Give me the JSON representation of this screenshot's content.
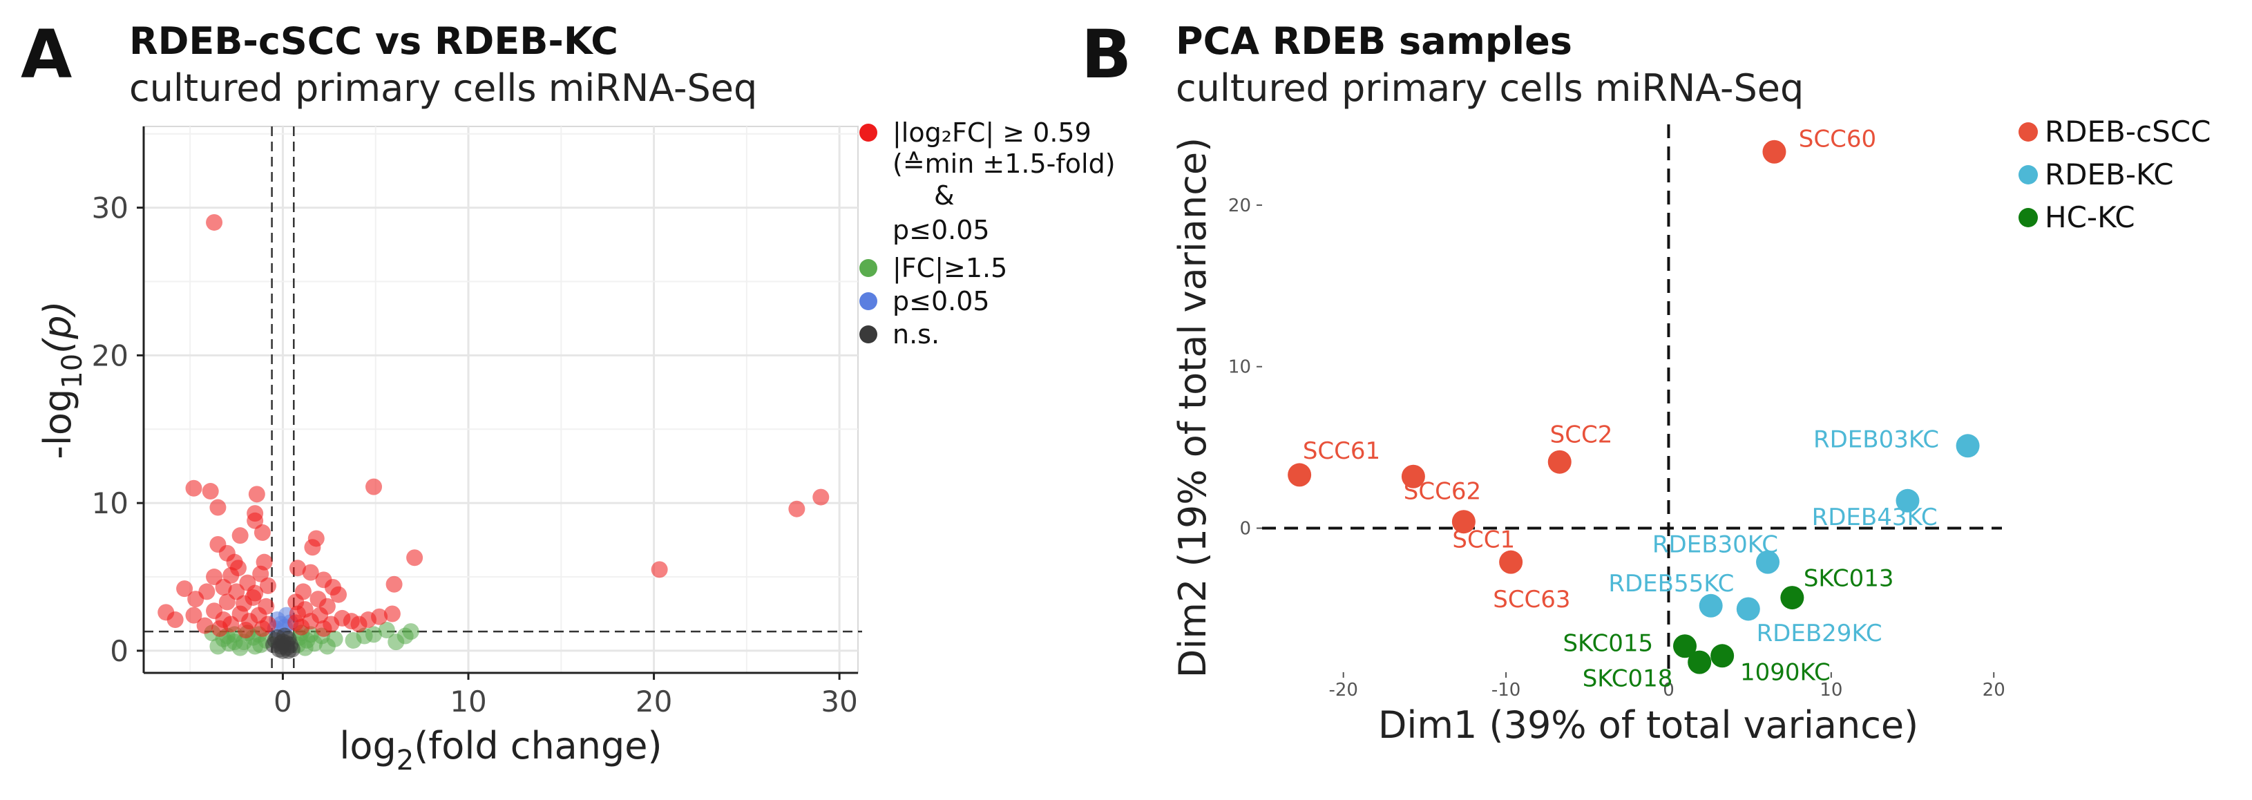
{
  "figure": {
    "panel_a_letter": "A",
    "panel_b_letter": "B"
  },
  "chart_data": [
    {
      "type": "scatter",
      "subtype": "volcano",
      "title": "RDEB-cSCC vs RDEB-KC",
      "subtitle": "cultured primary cells miRNA-Seq",
      "xlabel": {
        "main": "log",
        "sub": "2",
        "tail": "(fold change)"
      },
      "ylabel": {
        "main": "-log",
        "sub": "10",
        "tail": "(p)"
      },
      "xlim": [
        -7.5,
        31
      ],
      "ylim": [
        -1.5,
        35.5
      ],
      "xticks": [
        0,
        10,
        20,
        30
      ],
      "yticks": [
        0,
        10,
        20,
        30
      ],
      "thresholds": {
        "fc_left": -0.59,
        "fc_right": 0.59,
        "p_line": 1.3
      },
      "legend": {
        "position": "right",
        "items": [
          {
            "key": "sig",
            "color": "#ee1c1c",
            "lines": [
              "|log₂FC| ≥ 0.59",
              "(≙min ±1.5-fold)",
              "&",
              "p≤0.05"
            ]
          },
          {
            "key": "fc",
            "color": "#5aac4e",
            "lines": [
              "|FC|≥1.5"
            ]
          },
          {
            "key": "p",
            "color": "#5b7fe0",
            "lines": [
              "p≤0.05"
            ]
          },
          {
            "key": "ns",
            "color": "#3a3a3a",
            "lines": [
              "n.s."
            ]
          }
        ]
      },
      "series": [
        {
          "name": "significant",
          "color": "#ee1c1c",
          "points": [
            [
              -3.7,
              29.0
            ],
            [
              -4.8,
              11.0
            ],
            [
              -3.9,
              10.8
            ],
            [
              -3.5,
              9.7
            ],
            [
              -1.4,
              10.6
            ],
            [
              -1.5,
              9.3
            ],
            [
              -1.5,
              8.8
            ],
            [
              -1.1,
              8.0
            ],
            [
              -2.3,
              7.8
            ],
            [
              -3.5,
              7.2
            ],
            [
              -3.0,
              6.6
            ],
            [
              -2.6,
              6.0
            ],
            [
              -1.0,
              6.0
            ],
            [
              -3.7,
              5.0
            ],
            [
              -2.4,
              5.6
            ],
            [
              -1.9,
              4.6
            ],
            [
              -1.2,
              5.2
            ],
            [
              -0.8,
              4.4
            ],
            [
              -3.2,
              4.3
            ],
            [
              -5.3,
              4.2
            ],
            [
              -4.1,
              4.0
            ],
            [
              -2.5,
              4.0
            ],
            [
              -1.6,
              3.6
            ],
            [
              -3.0,
              3.3
            ],
            [
              -4.7,
              3.5
            ],
            [
              -2.1,
              3.2
            ],
            [
              -0.9,
              3.0
            ],
            [
              -3.7,
              2.7
            ],
            [
              -2.3,
              2.5
            ],
            [
              -1.3,
              2.4
            ],
            [
              -6.3,
              2.6
            ],
            [
              -5.8,
              2.1
            ],
            [
              -4.8,
              2.4
            ],
            [
              -3.2,
              2.1
            ],
            [
              -1.8,
              2.0
            ],
            [
              -0.8,
              1.8
            ],
            [
              -2.8,
              1.8
            ],
            [
              -4.2,
              1.7
            ],
            [
              -1.1,
              1.5
            ],
            [
              -2.0,
              1.4
            ],
            [
              -3.4,
              1.5
            ],
            [
              -1.5,
              3.9
            ],
            [
              -2.8,
              5.1
            ],
            [
              1.8,
              7.6
            ],
            [
              1.6,
              7.0
            ],
            [
              0.8,
              5.6
            ],
            [
              1.5,
              5.3
            ],
            [
              2.2,
              4.8
            ],
            [
              2.7,
              4.3
            ],
            [
              1.1,
              4.0
            ],
            [
              3.0,
              3.8
            ],
            [
              1.9,
              3.5
            ],
            [
              0.7,
              3.3
            ],
            [
              2.4,
              3.0
            ],
            [
              1.2,
              2.8
            ],
            [
              0.8,
              2.5
            ],
            [
              2.0,
              2.4
            ],
            [
              3.2,
              2.2
            ],
            [
              1.5,
              2.0
            ],
            [
              0.7,
              1.9
            ],
            [
              2.6,
              1.8
            ],
            [
              1.0,
              1.6
            ],
            [
              2.2,
              1.5
            ],
            [
              3.7,
              2.0
            ],
            [
              4.1,
              1.8
            ],
            [
              4.6,
              2.1
            ],
            [
              5.2,
              2.3
            ],
            [
              5.9,
              2.5
            ],
            [
              6.0,
              4.5
            ],
            [
              7.1,
              6.3
            ],
            [
              4.9,
              11.1
            ],
            [
              20.3,
              5.5
            ],
            [
              27.7,
              9.6
            ],
            [
              29.0,
              10.4
            ]
          ]
        },
        {
          "name": "fc_only",
          "color": "#5aac4e",
          "points": [
            [
              -3.8,
              1.2
            ],
            [
              -3.2,
              0.8
            ],
            [
              -2.6,
              1.1
            ],
            [
              -2.1,
              0.6
            ],
            [
              -1.6,
              0.9
            ],
            [
              -1.2,
              0.4
            ],
            [
              -2.9,
              0.5
            ],
            [
              -3.5,
              0.3
            ],
            [
              -2.3,
              0.2
            ],
            [
              -1.9,
              1.2
            ],
            [
              -1.3,
              1.1
            ],
            [
              -0.9,
              0.7
            ],
            [
              -2.6,
              0.6
            ],
            [
              -1.5,
              0.3
            ],
            [
              -3.0,
              1.0
            ],
            [
              0.8,
              0.4
            ],
            [
              1.0,
              1.2
            ],
            [
              1.3,
              0.7
            ],
            [
              1.7,
              0.5
            ],
            [
              2.1,
              1.0
            ],
            [
              2.4,
              0.3
            ],
            [
              1.2,
              0.2
            ],
            [
              2.8,
              0.8
            ],
            [
              1.5,
              1.1
            ],
            [
              0.9,
              0.9
            ],
            [
              3.8,
              0.7
            ],
            [
              4.4,
              1.0
            ],
            [
              4.9,
              1.1
            ],
            [
              5.6,
              1.4
            ],
            [
              6.1,
              0.6
            ],
            [
              6.6,
              1.0
            ],
            [
              6.9,
              1.3
            ]
          ]
        },
        {
          "name": "p_only",
          "color": "#5b7fe0",
          "points": [
            [
              -0.3,
              2.1
            ],
            [
              0.2,
              2.4
            ],
            [
              -0.1,
              1.8
            ],
            [
              0.4,
              1.9
            ],
            [
              0.1,
              1.6
            ],
            [
              -0.4,
              1.5
            ]
          ]
        },
        {
          "name": "ns",
          "color": "#3a3a3a",
          "points": [
            [
              -0.5,
              0.4
            ],
            [
              -0.3,
              0.9
            ],
            [
              -0.1,
              0.3
            ],
            [
              0.0,
              0.6
            ],
            [
              0.2,
              0.2
            ],
            [
              0.3,
              0.8
            ],
            [
              0.4,
              0.4
            ],
            [
              0.1,
              1.0
            ],
            [
              -0.2,
              0.1
            ],
            [
              0.0,
              0.0
            ],
            [
              0.2,
              0.5
            ],
            [
              -0.4,
              0.7
            ],
            [
              0.5,
              0.1
            ],
            [
              -0.1,
              0.5
            ],
            [
              0.3,
              0.0
            ]
          ]
        }
      ]
    },
    {
      "type": "scatter",
      "subtype": "pca",
      "title": "PCA RDEB samples",
      "subtitle": "cultured primary cells miRNA-Seq",
      "xlabel": "Dim1 (39% of total variance)",
      "ylabel": "Dim2 (19% of total variance)",
      "xlim": [
        -25,
        20.5
      ],
      "ylim": [
        -9,
        25
      ],
      "xticks": [
        -20,
        -10,
        0,
        10,
        20
      ],
      "yticks": [
        0,
        10,
        20
      ],
      "legend": {
        "position": "right",
        "items": [
          {
            "name": "RDEB-cSCC",
            "color": "#e8513a"
          },
          {
            "name": "RDEB-KC",
            "color": "#4db8d6"
          },
          {
            "name": "HC-KC",
            "color": "#0f7d0f"
          }
        ]
      },
      "points": [
        {
          "label": "SCC60",
          "group": "RDEB-cSCC",
          "x": 6.5,
          "y": 23.3,
          "lx": 8.0,
          "ly": 23.6,
          "anchor": "start"
        },
        {
          "label": "SCC61",
          "group": "RDEB-cSCC",
          "x": -22.7,
          "y": 3.3,
          "lx": -22.5,
          "ly": 4.3,
          "anchor": "start"
        },
        {
          "label": "SCC62",
          "group": "RDEB-cSCC",
          "x": -15.7,
          "y": 3.2,
          "lx": -16.3,
          "ly": 1.8,
          "anchor": "start"
        },
        {
          "label": "SCC2",
          "group": "RDEB-cSCC",
          "x": -6.7,
          "y": 4.1,
          "lx": -7.3,
          "ly": 5.3,
          "anchor": "start"
        },
        {
          "label": "SCC1",
          "group": "RDEB-cSCC",
          "x": -12.6,
          "y": 0.4,
          "lx": -13.3,
          "ly": -1.2,
          "anchor": "start"
        },
        {
          "label": "SCC63",
          "group": "RDEB-cSCC",
          "x": -9.7,
          "y": -2.1,
          "lx": -10.8,
          "ly": -4.9,
          "anchor": "start"
        },
        {
          "label": "RDEB03KC",
          "group": "RDEB-KC",
          "x": 18.4,
          "y": 5.1,
          "lx": 8.9,
          "ly": 5.0,
          "anchor": "start"
        },
        {
          "label": "RDEB43KC",
          "group": "RDEB-KC",
          "x": 14.7,
          "y": 1.7,
          "lx": 8.8,
          "ly": 0.2,
          "anchor": "start"
        },
        {
          "label": "RDEB30KC",
          "group": "RDEB-KC",
          "x": 6.1,
          "y": -2.1,
          "lx": -1.0,
          "ly": -1.5,
          "anchor": "start"
        },
        {
          "label": "RDEB55KC",
          "group": "RDEB-KC",
          "x": 2.6,
          "y": -4.8,
          "lx": -3.7,
          "ly": -3.9,
          "anchor": "start"
        },
        {
          "label": "RDEB29KC",
          "group": "RDEB-KC",
          "x": 4.9,
          "y": -5.0,
          "lx": 5.4,
          "ly": -7.0,
          "anchor": "start"
        },
        {
          "label": "SKC013",
          "group": "HC-KC",
          "x": 7.6,
          "y": -4.3,
          "lx": 8.3,
          "ly": -3.6,
          "anchor": "start"
        },
        {
          "label": "SKC015",
          "group": "HC-KC",
          "x": 1.0,
          "y": -7.3,
          "lx": -6.5,
          "ly": -7.6,
          "anchor": "start"
        },
        {
          "label": "SKC018",
          "group": "HC-KC",
          "x": 1.9,
          "y": -8.3,
          "lx": -5.3,
          "ly": -9.8,
          "anchor": "start"
        },
        {
          "label": "1090KC",
          "group": "HC-KC",
          "x": 3.3,
          "y": -7.9,
          "lx": 4.4,
          "ly": -9.4,
          "anchor": "start"
        }
      ]
    }
  ]
}
